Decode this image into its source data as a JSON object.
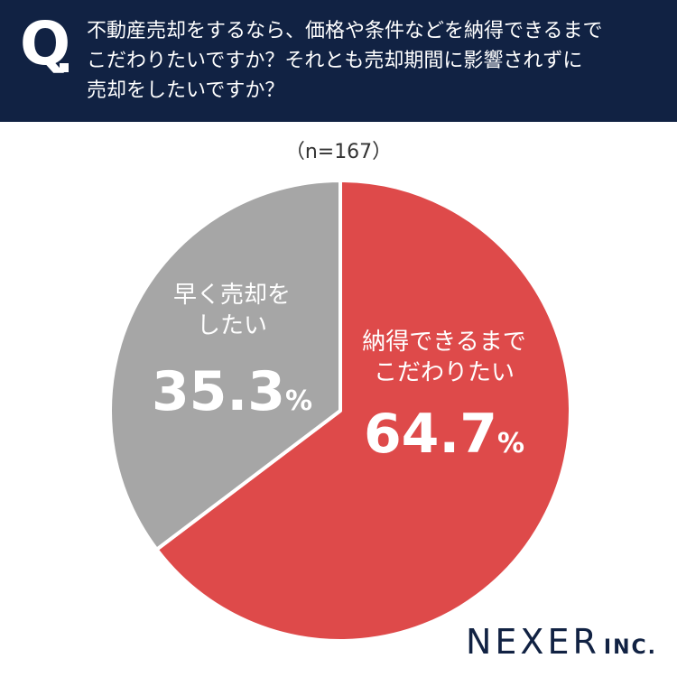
{
  "header": {
    "q_mark": "Q",
    "question_lines": [
      "不動産売却をするなら、価格や条件などを納得できるまで",
      "こだわりたいですか？それとも売却期間に影響されずに",
      "売却をしたいですか？"
    ]
  },
  "sample_label": "（n=167）",
  "chart_data": {
    "type": "pie",
    "start": "12 o'clock, clockwise",
    "slices": [
      {
        "label_lines": [
          "納得できるまで",
          "こだわりたい"
        ],
        "value": 64.7,
        "value_text": "64.7",
        "unit": "%",
        "color": "#de4a4a"
      },
      {
        "label_lines": [
          "早く売却を",
          "したい"
        ],
        "value": 35.3,
        "value_text": "35.3",
        "unit": "%",
        "color": "#a6a6a6"
      }
    ]
  },
  "logo": {
    "name": "NEXER",
    "suffix": "INC."
  }
}
